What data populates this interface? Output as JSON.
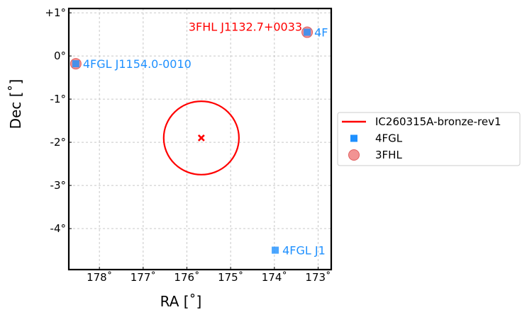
{
  "chart_data": {
    "type": "scatter",
    "xlabel": "RA [$^{\\circ}$]",
    "xlabel_text": "RA [˚]",
    "ylabel_text": "Dec [˚]",
    "xlim": [
      178.7,
      172.7
    ],
    "ylim": [
      -4.95,
      1.1
    ],
    "x_ticks": [
      178,
      177,
      176,
      175,
      174,
      173
    ],
    "x_tick_labels": [
      "178˚",
      "177˚",
      "176˚",
      "175˚",
      "174˚",
      "173˚"
    ],
    "y_ticks": [
      1,
      0,
      -1,
      -2,
      -3,
      -4
    ],
    "y_tick_labels": [
      "+1°",
      "0°",
      "-1°",
      "-2°",
      "-3°",
      "-4°"
    ],
    "grid": true,
    "legend_placement": "right",
    "legend": [
      {
        "label": "IC260315A-bronze-rev1",
        "kind": "line",
        "color": "#ff0000"
      },
      {
        "label": "4FGL",
        "kind": "square",
        "color": "#1e90ff"
      },
      {
        "label": "3FHL",
        "kind": "circle",
        "color": "#f08080"
      }
    ],
    "event": {
      "name": "IC260315A-bronze-rev1",
      "best_fit": {
        "ra": 175.67,
        "dec": -1.9
      },
      "error_region": {
        "center_ra": 175.67,
        "center_dec": -1.9,
        "radius_ra": 0.86,
        "radius_dec": 0.85
      },
      "color": "#ff0000"
    },
    "series": [
      {
        "name": "4FGL",
        "color": "#1e90ff",
        "points": [
          {
            "ra": 178.54,
            "dec": -0.18
          },
          {
            "ra": 173.25,
            "dec": 0.55
          },
          {
            "ra": 173.98,
            "dec": -4.5
          }
        ]
      },
      {
        "name": "3FHL",
        "color": "#f08080",
        "points": [
          {
            "ra": 178.54,
            "dec": -0.18
          },
          {
            "ra": 173.25,
            "dec": 0.55
          }
        ]
      }
    ],
    "annotations": [
      {
        "text": "4FGL J1154.0-0010",
        "ra": 178.54,
        "dec": -0.18,
        "color": "#1e90ff",
        "anchor": "start"
      },
      {
        "text": "4F",
        "ra": 173.25,
        "dec": 0.55,
        "color": "#1e90ff",
        "anchor": "start"
      },
      {
        "text": "3FHL J1132.7+0033",
        "ra": 173.25,
        "dec": 0.55,
        "color": "#ff0000",
        "anchor": "end"
      },
      {
        "text": "4FGL J1",
        "ra": 173.98,
        "dec": -4.5,
        "color": "#1e90ff",
        "anchor": "start"
      }
    ]
  }
}
